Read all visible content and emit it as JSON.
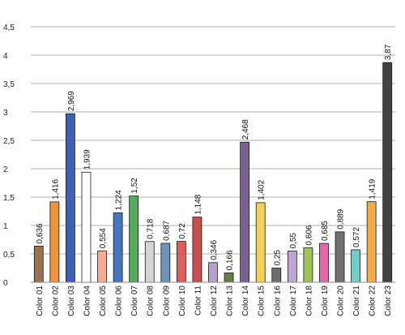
{
  "chart_data": {
    "type": "bar",
    "title": "",
    "xlabel": "",
    "ylabel": "",
    "ylim": [
      0,
      4.5
    ],
    "y_ticks": [
      0,
      0.5,
      1,
      1.5,
      2,
      2.5,
      3,
      3.5,
      4,
      4.5
    ],
    "y_tick_labels": [
      "0",
      "0,5",
      "1",
      "1,5",
      "2",
      "2,5",
      "3",
      "3,5",
      "4",
      "4,5"
    ],
    "grid": true,
    "legend": "none",
    "categories": [
      "Color 01",
      "Color 02",
      "Color 03",
      "Color 04",
      "Color 05",
      "Color 06",
      "Color 07",
      "Color 08",
      "Color 09",
      "Color 10",
      "Color 11",
      "Color 12",
      "Color 13",
      "Color 14",
      "Color 15",
      "Color 16",
      "Color 17",
      "Color 18",
      "Color 19",
      "Color 20",
      "Color 21",
      "Color 22",
      "Color 23"
    ],
    "values": [
      0.636,
      1.416,
      2.969,
      1.939,
      0.554,
      1.224,
      1.52,
      0.718,
      0.687,
      0.72,
      1.148,
      0.346,
      0.166,
      2.468,
      1.402,
      0.25,
      0.55,
      0.606,
      0.685,
      0.889,
      0.572,
      1.419,
      3.87
    ],
    "value_labels": [
      "0,636",
      "1,416",
      "2,969",
      "1,939",
      "0,554",
      "1,224",
      "1,52",
      "0,718",
      "0,687",
      "0,72",
      "1,148",
      "0,346",
      "0,166",
      "2,468",
      "1,402",
      "0,25",
      "0,55",
      "0,606",
      "0,685",
      "0,889",
      "0,572",
      "1,419",
      "3,87"
    ],
    "colors": [
      "#9b7255",
      "#f0913b",
      "#3f62b0",
      "#ffffff",
      "#f8aa96",
      "#4577c0",
      "#59a860",
      "#d4d4d4",
      "#7094b8",
      "#d86060",
      "#c74f4f",
      "#b7a1c8",
      "#6a7e4c",
      "#7a6290",
      "#f4d058",
      "#6f6f6f",
      "#bea7cf",
      "#9ec35a",
      "#e36aa7",
      "#707070",
      "#76cbc5",
      "#f3ac4b",
      "#424242"
    ]
  }
}
